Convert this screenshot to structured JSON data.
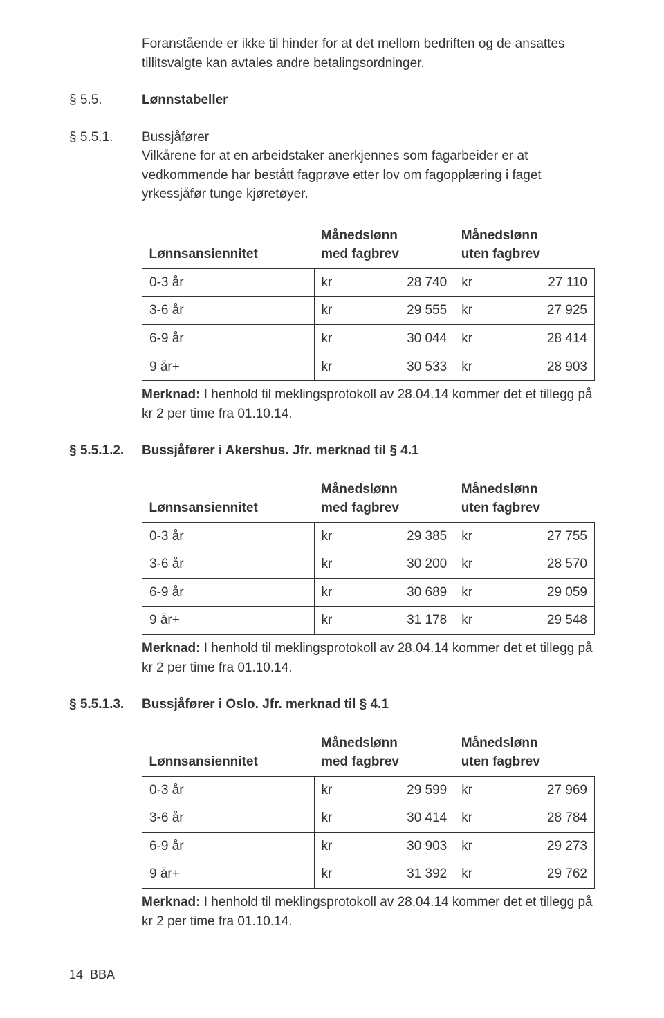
{
  "intro": {
    "text": "Foranstående er ikke til hinder for at det mellom bedriften og de ansattes tillitsvalgte kan avtales andre betalingsordninger."
  },
  "sec55": {
    "num": "§ 5.5.",
    "title": "Lønnstabeller"
  },
  "sec551": {
    "num": "§ 5.5.1.",
    "title": "Bussjåfører",
    "body": "Vilkårene for at en arbeidstaker anerkjennes som fagarbeider er at vedkommende har bestått fagprøve etter lov om fagopplæring i faget yrkessjåfør tunge kjøretøyer."
  },
  "table_headers": {
    "col1": "Lønnsansiennitet",
    "col2a": "Månedslønn",
    "col2b": "med fagbrev",
    "col3a": "Månedslønn",
    "col3b": "uten fagbrev",
    "kr": "kr"
  },
  "table1": {
    "rows": [
      {
        "label": "0-3 år",
        "med": "28 740",
        "uten": "27 110"
      },
      {
        "label": "3-6 år",
        "med": "29 555",
        "uten": "27 925"
      },
      {
        "label": "6-9 år",
        "med": "30 044",
        "uten": "28 414"
      },
      {
        "label": "9 år+",
        "med": "30 533",
        "uten": "28 903"
      }
    ]
  },
  "merknad": {
    "label": "Merknad:",
    "text": " I henhold til meklingsprotokoll av 28.04.14 kommer det et tillegg på kr 2 per time fra 01.10.14."
  },
  "sec5512": {
    "num": "§ 5.5.1.2.",
    "title": "Bussjåfører i Akershus. Jfr. merknad til § 4.1"
  },
  "table2": {
    "rows": [
      {
        "label": "0-3 år",
        "med": "29 385",
        "uten": "27 755"
      },
      {
        "label": "3-6 år",
        "med": "30 200",
        "uten": "28 570"
      },
      {
        "label": "6-9 år",
        "med": "30 689",
        "uten": "29 059"
      },
      {
        "label": "9 år+",
        "med": "31 178",
        "uten": "29 548"
      }
    ]
  },
  "sec5513": {
    "num": "§ 5.5.1.3.",
    "title": "Bussjåfører i Oslo. Jfr. merknad til § 4.1"
  },
  "table3": {
    "rows": [
      {
        "label": "0-3 år",
        "med": "29 599",
        "uten": "27 969"
      },
      {
        "label": "3-6 år",
        "med": "30 414",
        "uten": "28 784"
      },
      {
        "label": "6-9 år",
        "med": "30 903",
        "uten": "29 273"
      },
      {
        "label": "9 år+",
        "med": "31 392",
        "uten": "29 762"
      }
    ]
  },
  "footer": {
    "page": "14",
    "label": "BBA"
  }
}
